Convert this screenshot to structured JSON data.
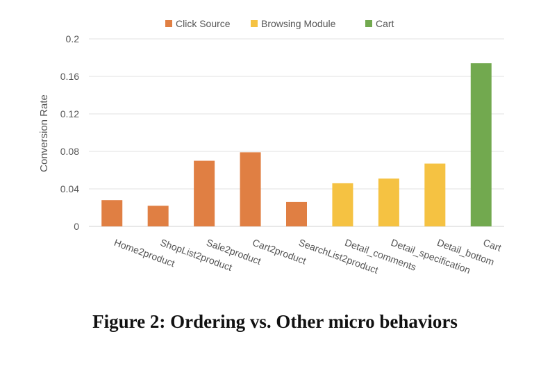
{
  "chart_data": {
    "type": "bar",
    "ylabel": "Conversion Rate",
    "xlabel": "",
    "ylim": [
      0,
      0.2
    ],
    "yticks": [
      0,
      0.04,
      0.08,
      0.12,
      0.16,
      0.2
    ],
    "ytick_labels": [
      "0",
      "0.04",
      "0.08",
      "0.12",
      "0.16",
      "0.2"
    ],
    "grid": true,
    "legend_position": "top",
    "series": [
      {
        "name": "Click Source",
        "color": "#E07F43"
      },
      {
        "name": "Browsing Module",
        "color": "#F5C242"
      },
      {
        "name": "Cart",
        "color": "#72A94F"
      }
    ],
    "categories": [
      "Home2product",
      "ShopList2product",
      "Sale2product",
      "Cart2product",
      "SearchList2product",
      "Detail_comments",
      "Detail_specification",
      "Detail_bottom",
      "Cart"
    ],
    "values": [
      0.028,
      0.022,
      0.07,
      0.079,
      0.026,
      0.046,
      0.051,
      0.067,
      0.174
    ],
    "bar_series": [
      0,
      0,
      0,
      0,
      0,
      1,
      1,
      1,
      2
    ]
  },
  "caption": "Figure 2: Ordering vs. Other micro behaviors"
}
